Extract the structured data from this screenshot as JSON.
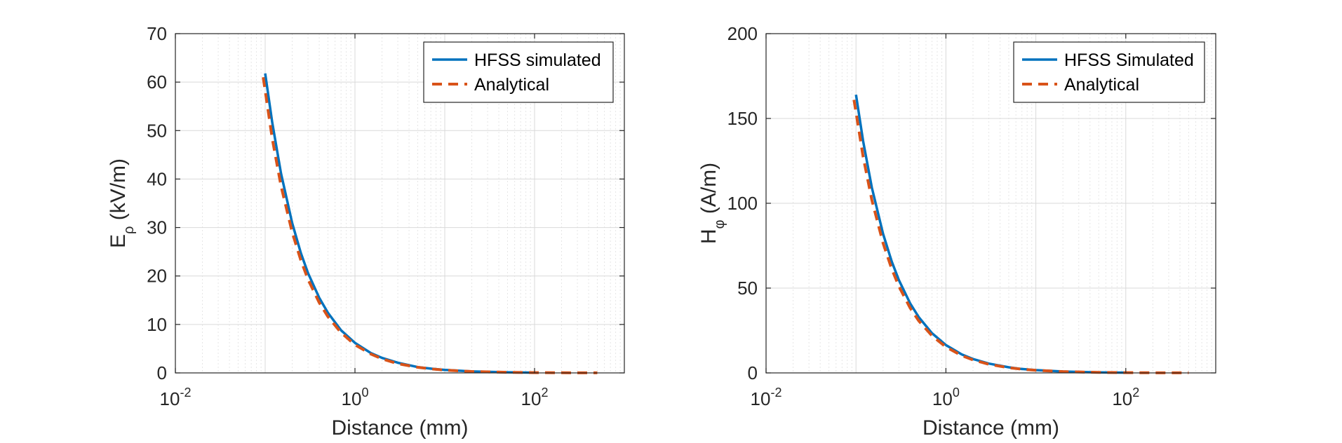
{
  "colors": {
    "simulated": "#0072BD",
    "analytical": "#D95319",
    "axis": "#262626",
    "grid_major": "#d9d9d9",
    "grid_minor": "#e6e6e6"
  },
  "chart_data": [
    {
      "type": "line",
      "xscale": "log",
      "xlim": [
        0.01,
        1000
      ],
      "ylim": [
        0,
        70
      ],
      "xticks": [
        0.01,
        1,
        100
      ],
      "xtick_labels": [
        {
          "base": "10",
          "exp": "-2"
        },
        {
          "base": "10",
          "exp": "0"
        },
        {
          "base": "10",
          "exp": "2"
        }
      ],
      "yticks": [
        0,
        10,
        20,
        30,
        40,
        50,
        60,
        70
      ],
      "ytick_labels": [
        "0",
        "10",
        "20",
        "30",
        "40",
        "50",
        "60",
        "70"
      ],
      "xlabel": "Distance (mm)",
      "ylabel": {
        "main": "E",
        "sub": "ρ",
        "unit": " (kV/m)"
      },
      "grid": true,
      "legend_position": "top-right",
      "series": [
        {
          "name": "HFSS simulated",
          "style": "solid",
          "color": "#0072BD",
          "x": [
            0.1,
            0.12,
            0.15,
            0.2,
            0.25,
            0.3,
            0.4,
            0.5,
            0.7,
            1,
            1.5,
            2,
            3,
            5,
            7,
            10,
            20,
            50,
            100
          ],
          "y": [
            61.8,
            51.6,
            41.2,
            30.9,
            24.7,
            20.6,
            15.5,
            12.4,
            8.8,
            6.2,
            4.1,
            3.1,
            2.1,
            1.2,
            0.88,
            0.62,
            0.31,
            0.12,
            0.06
          ]
        },
        {
          "name": "Analytical",
          "style": "dashed",
          "color": "#D95319",
          "x": [
            0.095,
            0.12,
            0.15,
            0.2,
            0.25,
            0.3,
            0.4,
            0.5,
            0.7,
            1,
            1.5,
            2,
            3,
            5,
            7,
            10,
            20,
            50,
            100,
            200,
            500
          ],
          "y": [
            61.0,
            48.3,
            38.6,
            29.0,
            23.2,
            19.3,
            14.5,
            11.6,
            8.3,
            5.8,
            3.9,
            2.9,
            1.9,
            1.16,
            0.83,
            0.58,
            0.29,
            0.12,
            0.06,
            0.03,
            0.01
          ]
        }
      ]
    },
    {
      "type": "line",
      "xscale": "log",
      "xlim": [
        0.01,
        1000
      ],
      "ylim": [
        0,
        200
      ],
      "xticks": [
        0.01,
        1,
        100
      ],
      "xtick_labels": [
        {
          "base": "10",
          "exp": "-2"
        },
        {
          "base": "10",
          "exp": "0"
        },
        {
          "base": "10",
          "exp": "2"
        }
      ],
      "yticks": [
        0,
        50,
        100,
        150,
        200
      ],
      "ytick_labels": [
        "0",
        "50",
        "100",
        "150",
        "200"
      ],
      "xlabel": "Distance (mm)",
      "ylabel": {
        "main": "H",
        "sub": "φ",
        "unit": " (A/m)"
      },
      "grid": true,
      "legend_position": "top-right",
      "series": [
        {
          "name": "HFSS Simulated",
          "style": "solid",
          "color": "#0072BD",
          "x": [
            0.1,
            0.12,
            0.15,
            0.2,
            0.25,
            0.3,
            0.4,
            0.5,
            0.7,
            1,
            1.5,
            2,
            3,
            5,
            7,
            10,
            20,
            50,
            100
          ],
          "y": [
            164,
            136.7,
            109.3,
            82.0,
            65.6,
            54.7,
            41.0,
            32.8,
            23.4,
            16.4,
            10.9,
            8.2,
            5.5,
            3.3,
            2.3,
            1.64,
            0.82,
            0.33,
            0.16
          ]
        },
        {
          "name": "Analytical",
          "style": "dashed",
          "color": "#D95319",
          "x": [
            0.095,
            0.12,
            0.15,
            0.2,
            0.25,
            0.3,
            0.4,
            0.5,
            0.7,
            1,
            1.5,
            2,
            3,
            5,
            7,
            10,
            20,
            50,
            100,
            200,
            500
          ],
          "y": [
            161,
            127.5,
            102.0,
            76.5,
            61.2,
            51.0,
            38.3,
            30.6,
            21.9,
            15.3,
            10.2,
            7.65,
            5.1,
            3.06,
            2.19,
            1.53,
            0.77,
            0.31,
            0.15,
            0.08,
            0.03
          ]
        }
      ]
    }
  ]
}
